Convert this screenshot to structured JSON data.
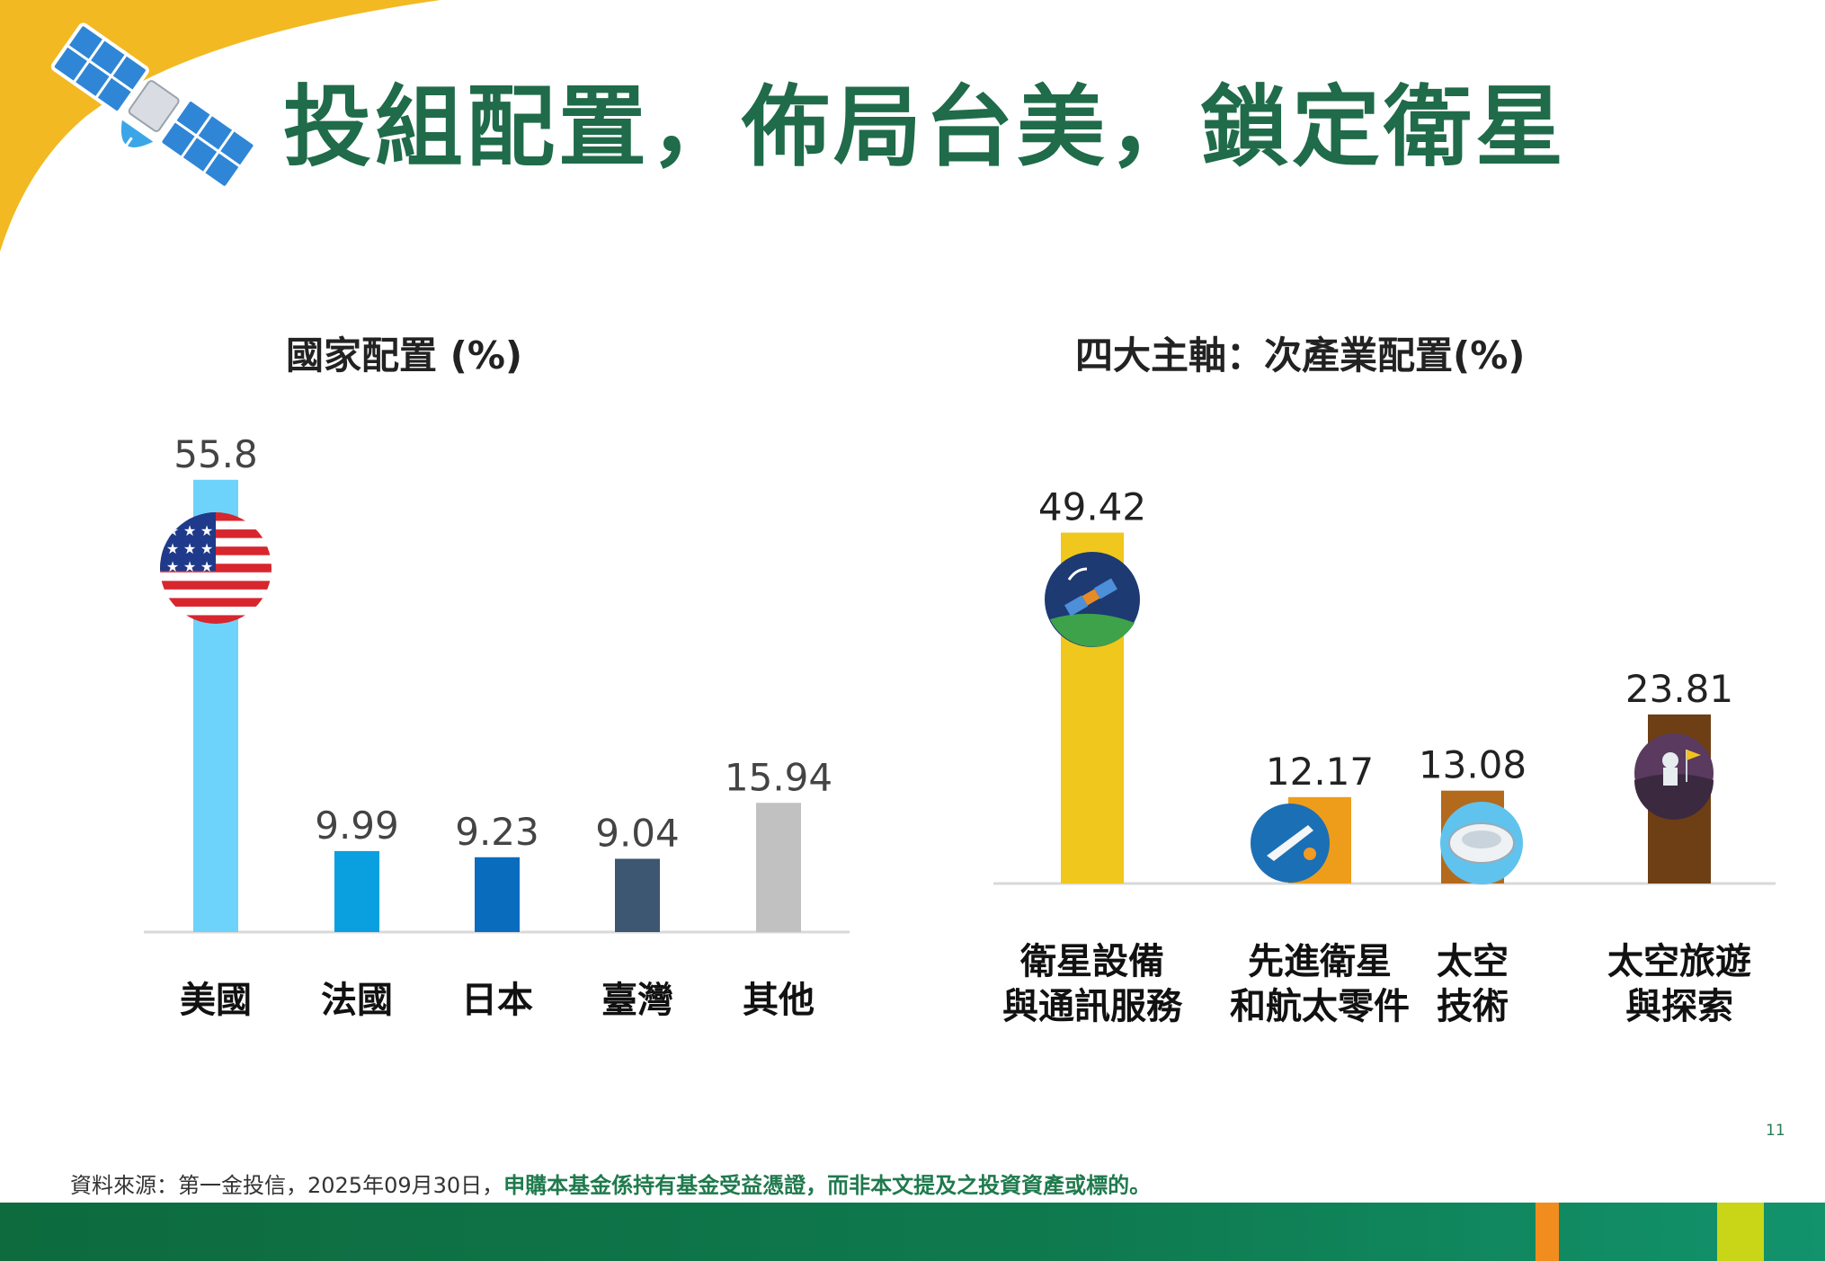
{
  "slide": {
    "title": "投組配置，佈局台美，鎖定衛星",
    "page_number": "11",
    "source_prefix": "資料來源：第一金投信，2025年09月30日，",
    "source_highlight": "申購本基金係持有基金受益憑證，而非本文提及之投資資產或標的。"
  },
  "colors": {
    "title_green": "#1f6b4a",
    "corner_yellow": "#f2b923",
    "band_dark_green": "#0d6b3e",
    "band_teal": "#0e8a6a",
    "band_orange": "#f18d1e",
    "band_lime": "#c8d617"
  },
  "icons": [
    "satellite-icon",
    "us-flag-icon",
    "satellite-earth-icon",
    "space-shuttle-icon",
    "space-tech-icon",
    "astronaut-icon"
  ],
  "chart_data": [
    {
      "type": "bar",
      "title": "國家配置 (%)",
      "categories": [
        "美國",
        "法國",
        "日本",
        "臺灣",
        "其他"
      ],
      "values": [
        55.8,
        9.99,
        9.23,
        9.04,
        15.94
      ],
      "value_labels": [
        "55.8",
        "9.99",
        "9.23",
        "9.04",
        "15.94"
      ],
      "colors": [
        "#6dd3fb",
        "#0aa0e0",
        "#0a6cbd",
        "#3d5672",
        "#c1c1c1"
      ],
      "ylim": [
        0,
        56
      ],
      "grid": false,
      "legend": "none"
    },
    {
      "type": "bar",
      "title": "四大主軸：次產業配置(%)",
      "categories": [
        "衛星設備\n與通訊服務",
        "先進衛星\n和航太零件",
        "太空\n技術",
        "太空旅遊\n與探索"
      ],
      "values": [
        49.42,
        12.17,
        13.08,
        23.81
      ],
      "value_labels": [
        "49.42",
        "12.17",
        "13.08",
        "23.81"
      ],
      "colors": [
        "#f0c71c",
        "#ee9d1a",
        "#b36a1c",
        "#6e3f14"
      ],
      "ylim": [
        0,
        50
      ],
      "grid": false,
      "legend": "none"
    }
  ]
}
